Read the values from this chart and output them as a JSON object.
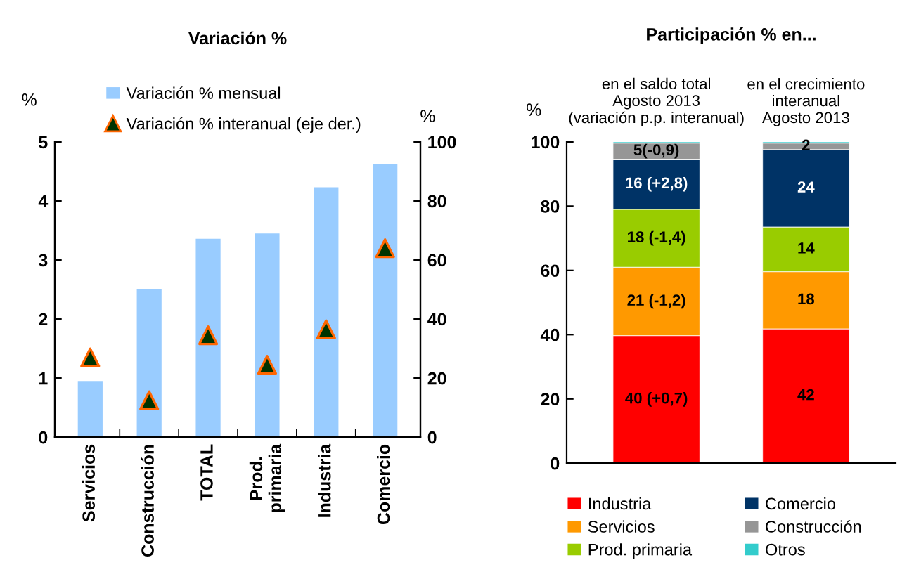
{
  "chart_data": [
    {
      "type": "bar",
      "title": "Variación %",
      "ylabel": "%",
      "y2label": "%",
      "categories": [
        "Servicios",
        "Construcción",
        "TOTAL",
        "Prod.\nprimaria",
        "Industria",
        "Comercio"
      ],
      "series": [
        {
          "name": "Variación % mensual",
          "type": "bar",
          "color": "#99ccff",
          "values": [
            0.95,
            2.5,
            3.36,
            3.45,
            4.23,
            4.62
          ]
        },
        {
          "name": "Variación % interanual (eje der.)",
          "type": "scatter",
          "axis": "y2",
          "marker": "triangle",
          "color": "#003300",
          "values": [
            27,
            12.5,
            34.5,
            24.5,
            36.5,
            64
          ]
        }
      ],
      "ylim": [
        0,
        5
      ],
      "yticks": [
        0,
        1,
        2,
        3,
        4,
        5
      ],
      "y2lim": [
        0,
        100
      ],
      "y2ticks": [
        0,
        20,
        40,
        60,
        80,
        100
      ],
      "grid": false,
      "legend": "top left"
    },
    {
      "type": "bar",
      "stacked": true,
      "title": "Participación % en...",
      "ylabel": "%",
      "categories": [
        "en el saldo total\nAgosto 2013\n(variación p.p. interanual)",
        "en el crecimiento\ninteranual\nAgosto 2013"
      ],
      "series": [
        {
          "name": "Industria",
          "color": "#ff0000",
          "values": [
            39.7,
            41.8
          ],
          "value_labels": [
            "40 (+0,7)",
            "42"
          ]
        },
        {
          "name": "Servicios",
          "color": "#ff9900",
          "values": [
            21.3,
            17.8
          ],
          "value_labels": [
            "21 (-1,2)",
            "18"
          ]
        },
        {
          "name": "Prod. primaria",
          "color": "#99cc00",
          "values": [
            18.0,
            13.9
          ],
          "value_labels": [
            "18 (-1,4)",
            "14"
          ]
        },
        {
          "name": "Comercio",
          "color": "#003366",
          "values": [
            15.6,
            24.1
          ],
          "value_labels": [
            "16 (+2,8)",
            "24"
          ]
        },
        {
          "name": "Construcción",
          "color": "#969696",
          "values": [
            5.0,
            2.0
          ],
          "value_labels": [
            "5(-0,9)",
            "2"
          ]
        },
        {
          "name": "Otros",
          "color": "#33cccc",
          "values": [
            0.4,
            0.4
          ],
          "value_labels": [
            null,
            null
          ]
        }
      ],
      "ylim": [
        0,
        100
      ],
      "yticks": [
        0,
        20,
        40,
        60,
        80,
        100
      ],
      "grid": false,
      "legend": "bottom"
    }
  ]
}
